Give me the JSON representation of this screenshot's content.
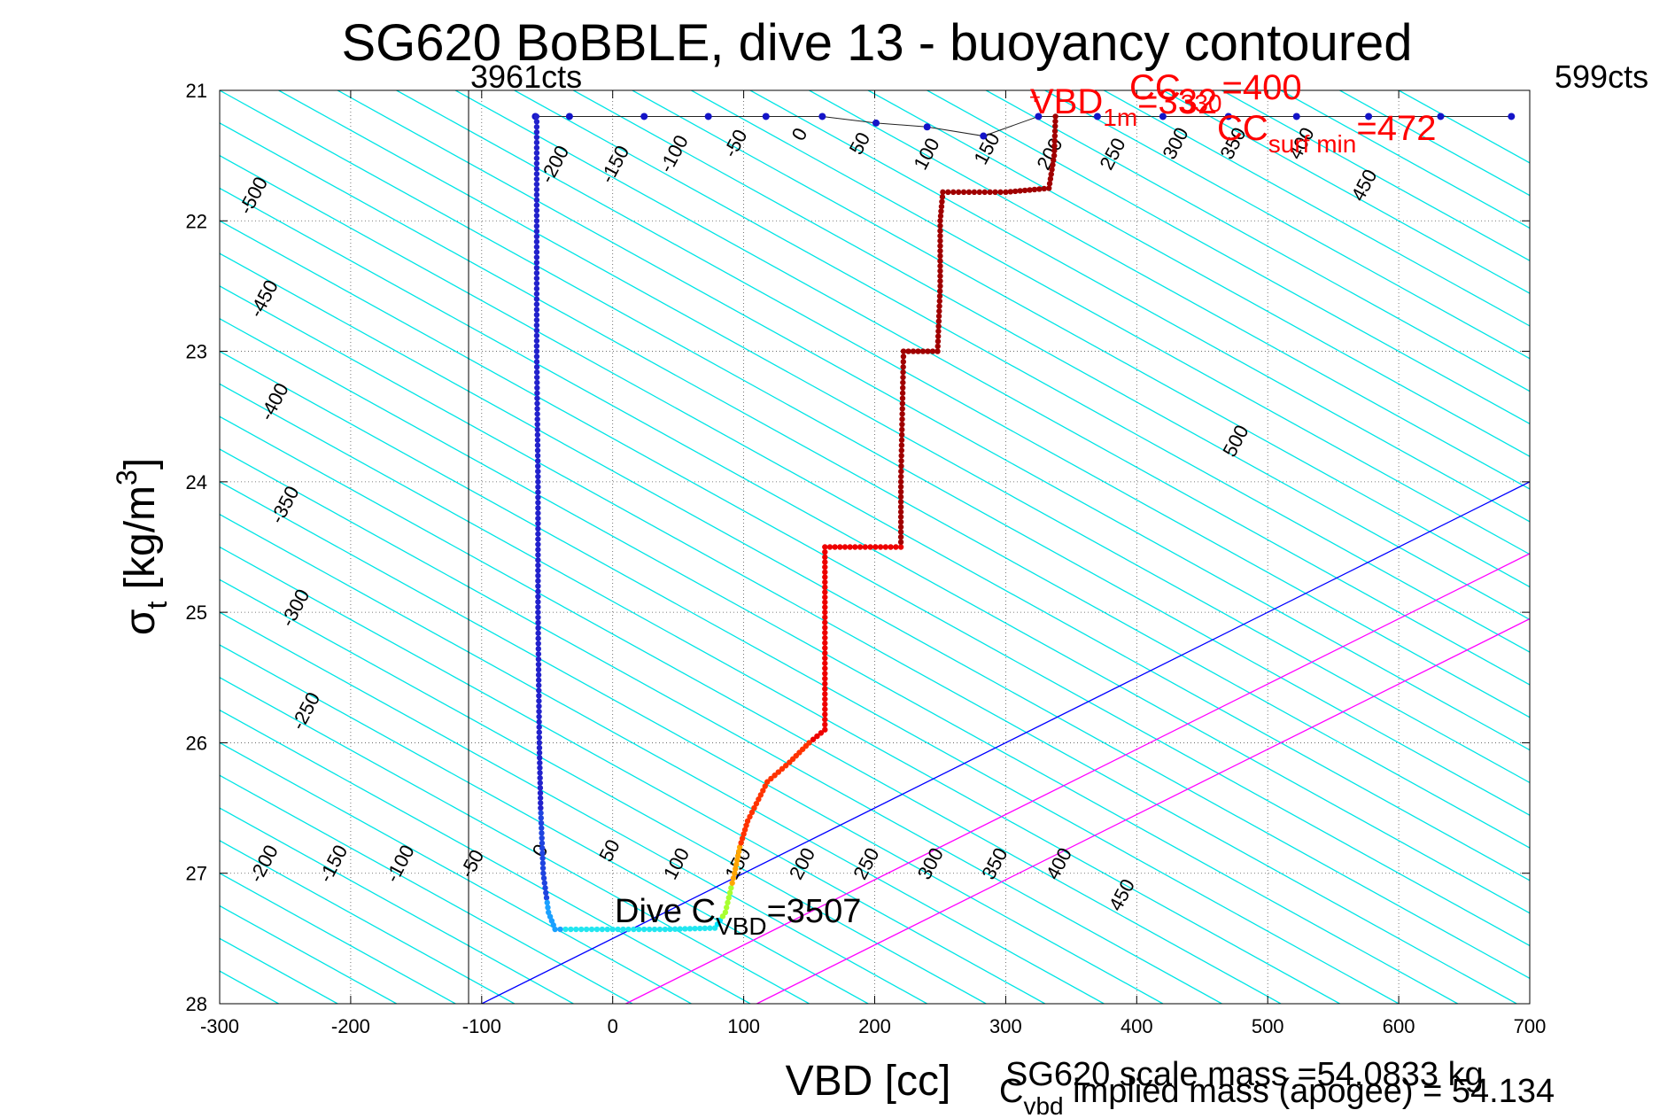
{
  "chart_data": {
    "type": "scatter",
    "title": "SG620 BoBBLE, dive 13 - buoyancy contoured",
    "xlabel": "VBD [cc]",
    "ylabel": {
      "main": "σ",
      "sub": "t",
      "unit": " [kg/m",
      "sup": "3",
      "close": "]"
    },
    "xlim": [
      -300,
      700
    ],
    "ylim": [
      28,
      21
    ],
    "xticks": [
      -300,
      -200,
      -100,
      0,
      100,
      200,
      300,
      400,
      500,
      600,
      700
    ],
    "yticks": [
      21,
      22,
      23,
      24,
      25,
      26,
      27,
      28
    ],
    "grid": true,
    "colors": {
      "contour": "#00e5e5",
      "ascent": "#00008b",
      "neutral_line": "#0000ff",
      "cc_limits": "#ff00ff",
      "annotation": "#ff0000",
      "text": "#000000"
    },
    "contour_slope_cc_per_sigma": 180,
    "neutral_line": {
      "x0_at_28": -100,
      "slope_cc_per_sigma": 200
    },
    "magenta_lines": [
      {
        "x_at_28": 10
      },
      {
        "x_at_28": 110
      }
    ],
    "vertical_line": {
      "x": -110,
      "label": "3961cts"
    },
    "right_label": "599cts",
    "contour_labels_top": [
      {
        "text": "-500",
        "x": -270,
        "y": 21.83
      },
      {
        "text": "-450",
        "x": -262,
        "y": 22.62
      },
      {
        "text": "-400",
        "x": -254,
        "y": 23.41
      },
      {
        "text": "-350",
        "x": -246,
        "y": 24.2
      },
      {
        "text": "-300",
        "x": -238,
        "y": 24.99
      },
      {
        "text": "-250",
        "x": -230,
        "y": 25.78
      },
      {
        "text": "-200",
        "x": -40,
        "y": 21.59
      },
      {
        "text": "-150",
        "x": 6,
        "y": 21.59
      },
      {
        "text": "-100",
        "x": 51,
        "y": 21.51
      },
      {
        "text": "-50",
        "x": 98,
        "y": 21.43
      },
      {
        "text": "0",
        "x": 147,
        "y": 21.36
      },
      {
        "text": "50",
        "x": 193,
        "y": 21.43
      },
      {
        "text": "100",
        "x": 244,
        "y": 21.51
      },
      {
        "text": "150",
        "x": 290,
        "y": 21.47
      },
      {
        "text": "200",
        "x": 338,
        "y": 21.51
      },
      {
        "text": "250",
        "x": 386,
        "y": 21.51
      },
      {
        "text": "300",
        "x": 434,
        "y": 21.43
      },
      {
        "text": "350",
        "x": 478,
        "y": 21.43
      },
      {
        "text": "400",
        "x": 530,
        "y": 21.43
      },
      {
        "text": "450",
        "x": 578,
        "y": 21.75
      },
      {
        "text": "500",
        "x": 480,
        "y": 23.71
      }
    ],
    "contour_labels_bottom": [
      {
        "text": "-200",
        "x": -262,
        "y": 26.95
      },
      {
        "text": "-150",
        "x": -209,
        "y": 26.95
      },
      {
        "text": "-100",
        "x": -158,
        "y": 26.95
      },
      {
        "text": "-50",
        "x": -103,
        "y": 26.95
      },
      {
        "text": "0",
        "x": -51,
        "y": 26.85
      },
      {
        "text": "50",
        "x": 2,
        "y": 26.85
      },
      {
        "text": "100",
        "x": 53,
        "y": 26.95
      },
      {
        "text": "150",
        "x": 100,
        "y": 26.95
      },
      {
        "text": "200",
        "x": 149,
        "y": 26.95
      },
      {
        "text": "250",
        "x": 198,
        "y": 26.95
      },
      {
        "text": "300",
        "x": 247,
        "y": 26.95
      },
      {
        "text": "350",
        "x": 296,
        "y": 26.95
      },
      {
        "text": "400",
        "x": 345,
        "y": 26.95
      },
      {
        "text": "450",
        "x": 393,
        "y": 27.19
      }
    ],
    "dive_profile": [
      {
        "vbd": -58,
        "sigma": 21.2
      },
      {
        "vbd": -58,
        "sigma": 22.0
      },
      {
        "vbd": -58,
        "sigma": 23.0
      },
      {
        "vbd": -57,
        "sigma": 24.0
      },
      {
        "vbd": -57,
        "sigma": 25.0
      },
      {
        "vbd": -56,
        "sigma": 26.0
      },
      {
        "vbd": -55,
        "sigma": 26.5
      },
      {
        "vbd": -53,
        "sigma": 27.0
      },
      {
        "vbd": -49,
        "sigma": 27.3
      },
      {
        "vbd": -44,
        "sigma": 27.43
      },
      {
        "vbd": 0,
        "sigma": 27.43
      },
      {
        "vbd": 40,
        "sigma": 27.43
      },
      {
        "vbd": 78,
        "sigma": 27.42
      },
      {
        "vbd": 86,
        "sigma": 27.3
      },
      {
        "vbd": 93,
        "sigma": 27.0
      },
      {
        "vbd": 97,
        "sigma": 26.8
      },
      {
        "vbd": 103,
        "sigma": 26.6
      },
      {
        "vbd": 118,
        "sigma": 26.3
      },
      {
        "vbd": 135,
        "sigma": 26.15
      },
      {
        "vbd": 150,
        "sigma": 26.0
      },
      {
        "vbd": 162,
        "sigma": 25.9
      },
      {
        "vbd": 162,
        "sigma": 25.0
      },
      {
        "vbd": 162,
        "sigma": 24.5
      },
      {
        "vbd": 185,
        "sigma": 24.5
      },
      {
        "vbd": 220,
        "sigma": 24.5
      },
      {
        "vbd": 220,
        "sigma": 24.0
      },
      {
        "vbd": 222,
        "sigma": 23.0
      },
      {
        "vbd": 248,
        "sigma": 23.0
      },
      {
        "vbd": 250,
        "sigma": 22.5
      },
      {
        "vbd": 250,
        "sigma": 22.0
      },
      {
        "vbd": 252,
        "sigma": 21.78
      },
      {
        "vbd": 300,
        "sigma": 21.78
      },
      {
        "vbd": 333,
        "sigma": 21.75
      },
      {
        "vbd": 337,
        "sigma": 21.5
      },
      {
        "vbd": 338,
        "sigma": 21.2
      }
    ],
    "dive_profile_colors": [
      {
        "sigma_from": 27.3,
        "sigma_to": 27.5,
        "color": "#00e5ff"
      },
      {
        "sigma_from": 26.8,
        "sigma_to": 27.3,
        "color": "#ffa500"
      },
      {
        "sigma_from": 26.0,
        "sigma_to": 26.8,
        "color": "#ff3300"
      },
      {
        "sigma_from": 24.5,
        "sigma_to": 26.0,
        "color": "#ee0000"
      },
      {
        "sigma_from": 21.0,
        "sigma_to": 24.5,
        "color": "#a00000"
      }
    ],
    "dive_ascent_curve": [
      {
        "vbd": 686,
        "sigma": 21.2
      },
      {
        "vbd": 632,
        "sigma": 21.2
      },
      {
        "vbd": 577,
        "sigma": 21.2
      },
      {
        "vbd": 522,
        "sigma": 21.2
      },
      {
        "vbd": 470,
        "sigma": 21.2
      },
      {
        "vbd": 420,
        "sigma": 21.2
      },
      {
        "vbd": 370,
        "sigma": 21.2
      },
      {
        "vbd": 325,
        "sigma": 21.2
      },
      {
        "vbd": 283,
        "sigma": 21.35
      },
      {
        "vbd": 240,
        "sigma": 21.28
      },
      {
        "vbd": 201,
        "sigma": 21.25
      },
      {
        "vbd": 160,
        "sigma": 21.2
      },
      {
        "vbd": 117,
        "sigma": 21.2
      },
      {
        "vbd": 73,
        "sigma": 21.2
      },
      {
        "vbd": 24,
        "sigma": 21.2
      },
      {
        "vbd": -33,
        "sigma": 21.2
      },
      {
        "vbd": -59,
        "sigma": 21.2
      }
    ],
    "annotations": {
      "dive_c_vbd": {
        "main": "Dive C",
        "sub": "VBD",
        "value": "=3507",
        "x": 0,
        "y": 27.37
      },
      "vbd_1m": {
        "main": "VBD",
        "sub": "1m",
        "value": "=332",
        "x": 322,
        "y": 21.18
      },
      "cc_330": {
        "main": "CC",
        "sub": "330",
        "value": "=400",
        "x": 400,
        "y": 21.0
      },
      "cc_surf_min": {
        "main": "CC",
        "sub": "surf min",
        "value": "=472",
        "x": 467,
        "y": 21.32
      }
    },
    "footer": {
      "scale_mass": "SG620 scale mass =54.0833 kg",
      "implied_mass": {
        "main": "C",
        "sub": "vbd",
        "text": " implied mass (apogee) = 54.134"
      }
    }
  }
}
